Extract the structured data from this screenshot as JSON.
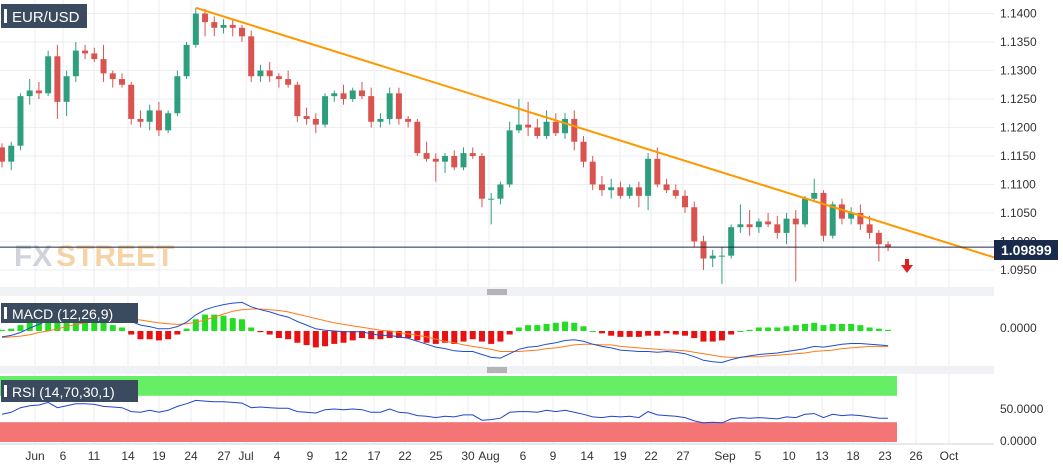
{
  "main": {
    "symbol": "EUR/USD",
    "price_levels": [
      "1.1400",
      "1.1350",
      "1.1300",
      "1.1250",
      "1.1200",
      "1.1150",
      "1.1100",
      "1.1050",
      "1.1000",
      "1.0950"
    ],
    "last_price": "1.09899",
    "watermark_fx": "FX",
    "watermark_street": "STREET"
  },
  "macd": {
    "label": "MACD (12,26,9)",
    "zero_label": "0.0000"
  },
  "rsi": {
    "label": "RSI (14,70,30,1)",
    "level_50": "50.0000",
    "level_0": "0.0000"
  },
  "x_axis": {
    "dates": [
      "Jun",
      "6",
      "11",
      "14",
      "19",
      "24",
      "27",
      "Jul",
      "4",
      "9",
      "12",
      "17",
      "22",
      "25",
      "30",
      "Aug",
      "6",
      "9",
      "14",
      "19",
      "22",
      "27",
      "Sep",
      "5",
      "10",
      "13",
      "18",
      "23",
      "26",
      "Oct"
    ]
  },
  "colors": {
    "up": "#2e9f7e",
    "down": "#d9534f",
    "trendline": "#ff9800",
    "macd_line": "#1f4fd0",
    "signal_line": "#ff7a1a",
    "hist_pos": "#22dd22",
    "hist_neg": "#e81010",
    "rsi_overbought": "#66ee66",
    "rsi_oversold": "#f47575",
    "rsi_line": "#2244cc"
  },
  "chart_data": {
    "type": "candlestick",
    "title": "EUR/USD",
    "ylim": [
      1.092,
      1.1415
    ],
    "last_price": 1.09899,
    "ohlc": [
      [
        1.1165,
        1.1172,
        1.113,
        1.114
      ],
      [
        1.114,
        1.1175,
        1.1125,
        1.1168
      ],
      [
        1.1168,
        1.126,
        1.116,
        1.1255
      ],
      [
        1.1255,
        1.1285,
        1.124,
        1.1265
      ],
      [
        1.1265,
        1.128,
        1.125,
        1.126
      ],
      [
        1.126,
        1.1335,
        1.1255,
        1.1325
      ],
      [
        1.1325,
        1.1345,
        1.1215,
        1.1245
      ],
      [
        1.1245,
        1.13,
        1.122,
        1.129
      ],
      [
        1.129,
        1.135,
        1.128,
        1.1335
      ],
      [
        1.1335,
        1.1345,
        1.132,
        1.133
      ],
      [
        1.133,
        1.134,
        1.1315,
        1.132
      ],
      [
        1.132,
        1.1345,
        1.128,
        1.1295
      ],
      [
        1.1295,
        1.13,
        1.127,
        1.1285
      ],
      [
        1.1285,
        1.1295,
        1.127,
        1.1275
      ],
      [
        1.1275,
        1.128,
        1.1205,
        1.1215
      ],
      [
        1.1215,
        1.123,
        1.12,
        1.121
      ],
      [
        1.121,
        1.124,
        1.1195,
        1.123
      ],
      [
        1.123,
        1.1245,
        1.1185,
        1.1195
      ],
      [
        1.1195,
        1.123,
        1.119,
        1.1225
      ],
      [
        1.1225,
        1.13,
        1.122,
        1.129
      ],
      [
        1.129,
        1.135,
        1.1285,
        1.1345
      ],
      [
        1.1345,
        1.141,
        1.134,
        1.14
      ],
      [
        1.14,
        1.1408,
        1.136,
        1.1385
      ],
      [
        1.1385,
        1.1395,
        1.136,
        1.1375
      ],
      [
        1.1375,
        1.139,
        1.1365,
        1.138
      ],
      [
        1.138,
        1.139,
        1.136,
        1.1375
      ],
      [
        1.1375,
        1.138,
        1.135,
        1.136
      ],
      [
        1.136,
        1.137,
        1.128,
        1.129
      ],
      [
        1.129,
        1.131,
        1.128,
        1.13
      ],
      [
        1.13,
        1.1315,
        1.128,
        1.129
      ],
      [
        1.129,
        1.1295,
        1.127,
        1.1285
      ],
      [
        1.1285,
        1.13,
        1.127,
        1.1275
      ],
      [
        1.1275,
        1.128,
        1.121,
        1.122
      ],
      [
        1.122,
        1.1235,
        1.1205,
        1.1215
      ],
      [
        1.1215,
        1.1225,
        1.119,
        1.1205
      ],
      [
        1.1205,
        1.126,
        1.12,
        1.1255
      ],
      [
        1.1255,
        1.1265,
        1.1245,
        1.126
      ],
      [
        1.126,
        1.1275,
        1.124,
        1.125
      ],
      [
        1.125,
        1.127,
        1.1245,
        1.1265
      ],
      [
        1.1265,
        1.128,
        1.125,
        1.1255
      ],
      [
        1.1255,
        1.127,
        1.12,
        1.121
      ],
      [
        1.121,
        1.1225,
        1.12,
        1.1215
      ],
      [
        1.1215,
        1.127,
        1.1205,
        1.126
      ],
      [
        1.126,
        1.127,
        1.1205,
        1.1215
      ],
      [
        1.1215,
        1.122,
        1.12,
        1.121
      ],
      [
        1.121,
        1.1215,
        1.115,
        1.1155
      ],
      [
        1.1155,
        1.1175,
        1.114,
        1.1145
      ],
      [
        1.1145,
        1.1155,
        1.1105,
        1.114
      ],
      [
        1.114,
        1.1155,
        1.112,
        1.115
      ],
      [
        1.115,
        1.116,
        1.1125,
        1.113
      ],
      [
        1.113,
        1.1165,
        1.1125,
        1.1155
      ],
      [
        1.1155,
        1.1165,
        1.1145,
        1.115
      ],
      [
        1.115,
        1.1155,
        1.106,
        1.1075
      ],
      [
        1.1075,
        1.1085,
        1.103,
        1.1075
      ],
      [
        1.1075,
        1.1105,
        1.1065,
        1.11
      ],
      [
        1.11,
        1.121,
        1.1095,
        1.1195
      ],
      [
        1.1195,
        1.125,
        1.119,
        1.1205
      ],
      [
        1.1205,
        1.1245,
        1.1185,
        1.12
      ],
      [
        1.12,
        1.1215,
        1.118,
        1.1185
      ],
      [
        1.1185,
        1.123,
        1.118,
        1.121
      ],
      [
        1.121,
        1.1225,
        1.1185,
        1.119
      ],
      [
        1.119,
        1.1225,
        1.118,
        1.1215
      ],
      [
        1.1215,
        1.123,
        1.116,
        1.1175
      ],
      [
        1.1175,
        1.1185,
        1.113,
        1.114
      ],
      [
        1.114,
        1.115,
        1.109,
        1.11
      ],
      [
        1.11,
        1.1115,
        1.108,
        1.109
      ],
      [
        1.109,
        1.111,
        1.1075,
        1.1095
      ],
      [
        1.1095,
        1.1105,
        1.1075,
        1.108
      ],
      [
        1.108,
        1.11,
        1.1075,
        1.1095
      ],
      [
        1.1095,
        1.1105,
        1.106,
        1.108
      ],
      [
        1.108,
        1.1155,
        1.1055,
        1.1145
      ],
      [
        1.1145,
        1.1165,
        1.1095,
        1.11
      ],
      [
        1.11,
        1.111,
        1.1085,
        1.109
      ],
      [
        1.109,
        1.11,
        1.1075,
        1.108
      ],
      [
        1.108,
        1.109,
        1.105,
        1.106
      ],
      [
        1.106,
        1.107,
        1.099,
        1.1
      ],
      [
        1.1,
        1.101,
        1.095,
        1.097
      ],
      [
        1.097,
        1.0985,
        1.0955,
        1.0975
      ],
      [
        1.0975,
        1.099,
        1.0925,
        1.0975
      ],
      [
        1.0975,
        1.103,
        1.097,
        1.1025
      ],
      [
        1.1025,
        1.1065,
        1.1015,
        1.103
      ],
      [
        1.103,
        1.1055,
        1.101,
        1.1025
      ],
      [
        1.1025,
        1.104,
        1.1015,
        1.1035
      ],
      [
        1.1035,
        1.105,
        1.1025,
        1.103
      ],
      [
        1.103,
        1.1045,
        1.1005,
        1.1015
      ],
      [
        1.1015,
        1.105,
        1.0995,
        1.104
      ],
      [
        1.104,
        1.1055,
        1.093,
        1.103
      ],
      [
        1.103,
        1.108,
        1.1025,
        1.1075
      ],
      [
        1.1075,
        1.111,
        1.107,
        1.1085
      ],
      [
        1.1085,
        1.109,
        1.1,
        1.101
      ],
      [
        1.101,
        1.107,
        1.1005,
        1.1065
      ],
      [
        1.1065,
        1.1075,
        1.103,
        1.104
      ],
      [
        1.104,
        1.106,
        1.103,
        1.105
      ],
      [
        1.105,
        1.1065,
        1.102,
        1.103
      ],
      [
        1.103,
        1.1045,
        1.1005,
        1.1015
      ],
      [
        1.1015,
        1.102,
        1.0965,
        1.0995
      ],
      [
        1.0995,
        1.1,
        1.0983,
        1.099
      ]
    ],
    "trendline": [
      [
        21,
        1.141
      ],
      [
        98,
        1.102
      ]
    ],
    "macd_panel": {
      "zero_label": "0.0000",
      "macd": [
        -0.0008,
        -0.0006,
        -0.0002,
        0.0004,
        0.0009,
        0.0015,
        0.0016,
        0.0015,
        0.0019,
        0.0022,
        0.0024,
        0.0023,
        0.0021,
        0.0019,
        0.0013,
        0.0008,
        0.0006,
        0.0003,
        0.0003,
        0.0006,
        0.0012,
        0.0022,
        0.0029,
        0.0033,
        0.0036,
        0.0038,
        0.0039,
        0.0033,
        0.0029,
        0.0026,
        0.0022,
        0.0019,
        0.0013,
        0.0008,
        0.0003,
        0.0001,
        0.0,
        -0.0001,
        -0.0001,
        -0.0001,
        -0.0004,
        -0.0006,
        -0.0006,
        -0.0008,
        -0.001,
        -0.0014,
        -0.0018,
        -0.0022,
        -0.0024,
        -0.0027,
        -0.0028,
        -0.0028,
        -0.0032,
        -0.0036,
        -0.0037,
        -0.0031,
        -0.0025,
        -0.0022,
        -0.0021,
        -0.0018,
        -0.0016,
        -0.0013,
        -0.0012,
        -0.0014,
        -0.0018,
        -0.0021,
        -0.0023,
        -0.0026,
        -0.0027,
        -0.0028,
        -0.0028,
        -0.0029,
        -0.0028,
        -0.0029,
        -0.0031,
        -0.0035,
        -0.004,
        -0.0042,
        -0.0043,
        -0.0039,
        -0.0036,
        -0.0034,
        -0.0032,
        -0.0031,
        -0.003,
        -0.0028,
        -0.0026,
        -0.0024,
        -0.0021,
        -0.0022,
        -0.002,
        -0.0018,
        -0.0017,
        -0.0017,
        -0.0018,
        -0.0019,
        -0.002
      ],
      "signal": [
        -0.0009,
        -0.0008,
        -0.0007,
        -0.0005,
        -0.0002,
        0.0,
        0.0003,
        0.0006,
        0.0009,
        0.0011,
        0.0013,
        0.0015,
        0.0016,
        0.0016,
        0.0016,
        0.0015,
        0.0013,
        0.0011,
        0.001,
        0.0009,
        0.001,
        0.0012,
        0.0015,
        0.0019,
        0.0023,
        0.0027,
        0.0029,
        0.003,
        0.003,
        0.0029,
        0.0028,
        0.0026,
        0.0023,
        0.002,
        0.0017,
        0.0014,
        0.0011,
        0.0009,
        0.0007,
        0.0005,
        0.0003,
        0.0001,
        0.0,
        -0.0002,
        -0.0004,
        -0.0006,
        -0.0008,
        -0.0011,
        -0.0014,
        -0.0016,
        -0.0019,
        -0.0021,
        -0.0023,
        -0.0025,
        -0.0028,
        -0.0028,
        -0.0028,
        -0.0027,
        -0.0026,
        -0.0024,
        -0.0023,
        -0.0021,
        -0.0019,
        -0.0018,
        -0.0018,
        -0.0019,
        -0.0019,
        -0.0021,
        -0.0022,
        -0.0023,
        -0.0024,
        -0.0025,
        -0.0026,
        -0.0026,
        -0.0027,
        -0.0029,
        -0.0031,
        -0.0033,
        -0.0035,
        -0.0036,
        -0.0036,
        -0.0035,
        -0.0035,
        -0.0034,
        -0.0033,
        -0.0032,
        -0.0031,
        -0.003,
        -0.0028,
        -0.0027,
        -0.0026,
        -0.0024,
        -0.0023,
        -0.0022,
        -0.0021,
        -0.0021,
        -0.0021
      ],
      "ylim": [
        -0.0045,
        0.0045
      ]
    },
    "rsi_panel": {
      "overbought": 70,
      "oversold": 30,
      "level_50": "50.0000",
      "level_0": "0.0000",
      "ylim": [
        0,
        100
      ],
      "values": [
        42,
        45,
        52,
        55,
        56,
        60,
        52,
        55,
        58,
        58,
        57,
        54,
        53,
        52,
        46,
        45,
        48,
        45,
        48,
        54,
        58,
        63,
        62,
        61,
        61,
        60,
        59,
        52,
        53,
        52,
        51,
        51,
        46,
        45,
        44,
        49,
        50,
        49,
        50,
        49,
        45,
        45,
        50,
        45,
        44,
        40,
        39,
        37,
        39,
        38,
        41,
        41,
        33,
        34,
        36,
        45,
        46,
        46,
        45,
        48,
        46,
        48,
        45,
        42,
        38,
        37,
        39,
        38,
        39,
        37,
        46,
        41,
        40,
        39,
        37,
        32,
        29,
        30,
        29,
        35,
        37,
        36,
        37,
        36,
        35,
        38,
        37,
        42,
        43,
        37,
        42,
        40,
        41,
        40,
        38,
        36,
        36
      ]
    }
  }
}
